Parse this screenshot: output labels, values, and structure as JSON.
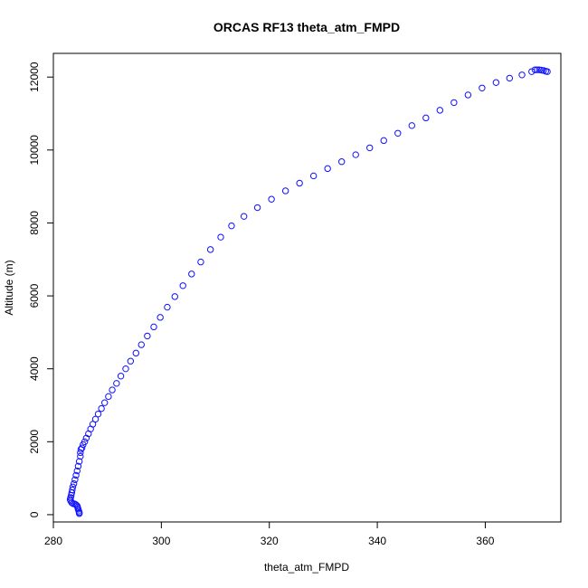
{
  "chart_data": {
    "type": "scatter",
    "title": "ORCAS RF13 theta_atm_FMPD",
    "xlabel": "theta_atm_FMPD",
    "ylabel": "Altitude (m)",
    "xlim": [
      280,
      374
    ],
    "ylim": [
      -200,
      12650
    ],
    "xticks": [
      280,
      300,
      320,
      340,
      360
    ],
    "yticks": [
      0,
      2000,
      4000,
      6000,
      8000,
      10000,
      12000
    ],
    "grid": false,
    "marker": "open-circle",
    "color": "#1010ff",
    "series": [
      {
        "points": [
          [
            284.8,
            30
          ],
          [
            284.8,
            60
          ],
          [
            284.7,
            100
          ],
          [
            284.6,
            150
          ],
          [
            284.5,
            200
          ],
          [
            284.4,
            240
          ],
          [
            284.2,
            270
          ],
          [
            284.0,
            290
          ],
          [
            283.7,
            300
          ],
          [
            283.4,
            330
          ],
          [
            283.2,
            380
          ],
          [
            283.1,
            420
          ],
          [
            283.2,
            470
          ],
          [
            283.3,
            530
          ],
          [
            283.4,
            600
          ],
          [
            283.5,
            680
          ],
          [
            283.6,
            760
          ],
          [
            283.8,
            850
          ],
          [
            284.0,
            960
          ],
          [
            284.2,
            1080
          ],
          [
            284.4,
            1200
          ],
          [
            284.6,
            1330
          ],
          [
            284.8,
            1460
          ],
          [
            285.0,
            1600
          ],
          [
            285.0,
            1700
          ],
          [
            285.1,
            1790
          ],
          [
            285.3,
            1830
          ],
          [
            285.5,
            1920
          ],
          [
            285.8,
            2000
          ],
          [
            286.1,
            2100
          ],
          [
            286.5,
            2220
          ],
          [
            286.9,
            2350
          ],
          [
            287.3,
            2480
          ],
          [
            287.8,
            2620
          ],
          [
            288.3,
            2760
          ],
          [
            288.9,
            2910
          ],
          [
            289.5,
            3070
          ],
          [
            290.2,
            3240
          ],
          [
            290.9,
            3420
          ],
          [
            291.7,
            3600
          ],
          [
            292.5,
            3800
          ],
          [
            293.4,
            4000
          ],
          [
            294.3,
            4210
          ],
          [
            295.3,
            4430
          ],
          [
            296.3,
            4660
          ],
          [
            297.4,
            4900
          ],
          [
            298.6,
            5150
          ],
          [
            299.8,
            5410
          ],
          [
            301.1,
            5690
          ],
          [
            302.5,
            5980
          ],
          [
            304.0,
            6280
          ],
          [
            305.6,
            6600
          ],
          [
            307.3,
            6930
          ],
          [
            309.1,
            7270
          ],
          [
            311.0,
            7610
          ],
          [
            313.0,
            7920
          ],
          [
            315.3,
            8180
          ],
          [
            317.8,
            8420
          ],
          [
            320.4,
            8650
          ],
          [
            323.0,
            8880
          ],
          [
            325.6,
            9090
          ],
          [
            328.2,
            9290
          ],
          [
            330.8,
            9490
          ],
          [
            333.4,
            9680
          ],
          [
            336.0,
            9870
          ],
          [
            338.6,
            10060
          ],
          [
            341.2,
            10260
          ],
          [
            343.8,
            10460
          ],
          [
            346.4,
            10670
          ],
          [
            349.0,
            10880
          ],
          [
            351.6,
            11090
          ],
          [
            354.2,
            11300
          ],
          [
            356.8,
            11510
          ],
          [
            359.4,
            11700
          ],
          [
            362.0,
            11850
          ],
          [
            364.5,
            11970
          ],
          [
            366.8,
            12060
          ],
          [
            368.6,
            12150
          ],
          [
            369.2,
            12200
          ],
          [
            369.6,
            12200
          ],
          [
            370.0,
            12200
          ],
          [
            370.4,
            12190
          ],
          [
            370.8,
            12180
          ],
          [
            371.2,
            12160
          ],
          [
            371.5,
            12150
          ]
        ]
      }
    ]
  }
}
